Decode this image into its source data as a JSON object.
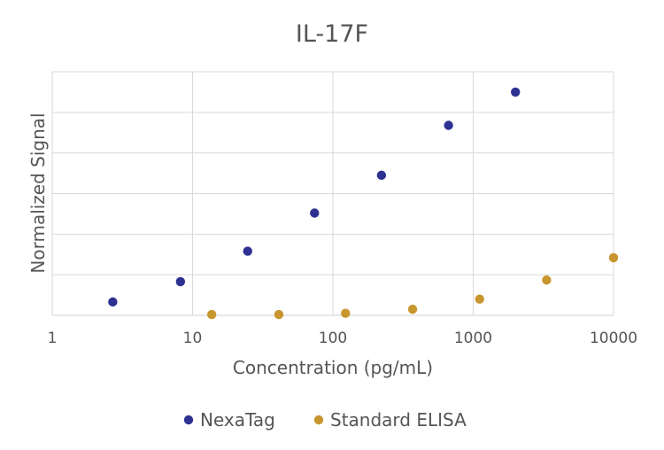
{
  "chart_data": {
    "type": "scatter",
    "title": "IL-17F",
    "xlabel": "Concentration (pg/mL)",
    "ylabel": "Normalized Signal",
    "xscale": "log",
    "xlim": [
      1,
      10000
    ],
    "ylim": [
      0,
      6
    ],
    "x_ticks": [
      1,
      10,
      100,
      1000,
      10000
    ],
    "x_tick_labels": [
      "1",
      "10",
      "100",
      "1000",
      "10000"
    ],
    "y_tick_labels_shown": false,
    "grid": true,
    "legend": "bottom",
    "series": [
      {
        "name": "NexaTag",
        "color": "#2e3192",
        "x": [
          2.7,
          8.2,
          24.7,
          74,
          222,
          667,
          2000
        ],
        "y": [
          0.33,
          0.83,
          1.58,
          2.52,
          3.45,
          4.68,
          5.5
        ]
      },
      {
        "name": "Standard ELISA",
        "color": "#c8962e",
        "x": [
          13.7,
          41.2,
          123,
          370,
          1111,
          3333,
          10000
        ],
        "y": [
          0.02,
          0.02,
          0.05,
          0.15,
          0.4,
          0.87,
          1.42
        ]
      }
    ]
  }
}
